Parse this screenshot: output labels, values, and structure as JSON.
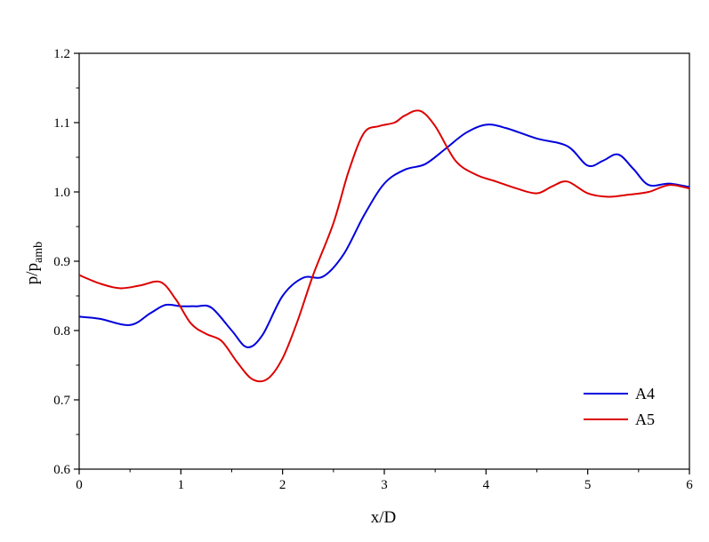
{
  "chart_data": {
    "type": "line",
    "title": "",
    "xlabel": "x/D",
    "ylabel_main": "p/p",
    "ylabel_sub": "amb",
    "xlim": [
      0,
      6
    ],
    "ylim": [
      0.6,
      1.2
    ],
    "x_ticks": [
      0,
      1,
      2,
      3,
      4,
      5,
      6
    ],
    "x_tick_labels": [
      "0",
      "1",
      "2",
      "3",
      "4",
      "5",
      "6"
    ],
    "y_ticks": [
      0.6,
      0.7,
      0.8,
      0.9,
      1.0,
      1.1,
      1.2
    ],
    "y_tick_labels": [
      "0.6",
      "0.7",
      "0.8",
      "0.9",
      "1.0",
      "1.1",
      "1.2"
    ],
    "grid": false,
    "legend_position": "bottom-right",
    "series": [
      {
        "name": "A4",
        "color": "#0000dd",
        "x": [
          0,
          0.2,
          0.5,
          0.7,
          0.85,
          1.0,
          1.15,
          1.3,
          1.5,
          1.65,
          1.8,
          2.0,
          2.2,
          2.4,
          2.6,
          2.8,
          3.0,
          3.2,
          3.4,
          3.6,
          3.8,
          4.0,
          4.2,
          4.5,
          4.8,
          5.0,
          5.15,
          5.3,
          5.45,
          5.6,
          5.8,
          6.0
        ],
        "y": [
          0.82,
          0.817,
          0.808,
          0.825,
          0.837,
          0.835,
          0.835,
          0.833,
          0.8,
          0.776,
          0.793,
          0.85,
          0.876,
          0.878,
          0.91,
          0.966,
          1.012,
          1.032,
          1.04,
          1.062,
          1.085,
          1.097,
          1.092,
          1.077,
          1.066,
          1.038,
          1.045,
          1.054,
          1.033,
          1.01,
          1.012,
          1.007
        ]
      },
      {
        "name": "A5",
        "color": "#dd0000",
        "x": [
          0,
          0.2,
          0.4,
          0.6,
          0.8,
          0.95,
          1.1,
          1.25,
          1.4,
          1.55,
          1.7,
          1.85,
          2.0,
          2.15,
          2.3,
          2.5,
          2.65,
          2.8,
          2.95,
          3.1,
          3.2,
          3.35,
          3.5,
          3.7,
          3.9,
          4.1,
          4.3,
          4.5,
          4.65,
          4.8,
          5.0,
          5.2,
          5.4,
          5.6,
          5.8,
          6.0
        ],
        "y": [
          0.88,
          0.868,
          0.861,
          0.865,
          0.87,
          0.845,
          0.81,
          0.795,
          0.785,
          0.755,
          0.73,
          0.73,
          0.76,
          0.815,
          0.88,
          0.955,
          1.03,
          1.085,
          1.095,
          1.1,
          1.11,
          1.117,
          1.095,
          1.045,
          1.025,
          1.015,
          1.005,
          0.998,
          1.008,
          1.015,
          0.998,
          0.993,
          0.996,
          1.0,
          1.01,
          1.005
        ]
      }
    ]
  }
}
